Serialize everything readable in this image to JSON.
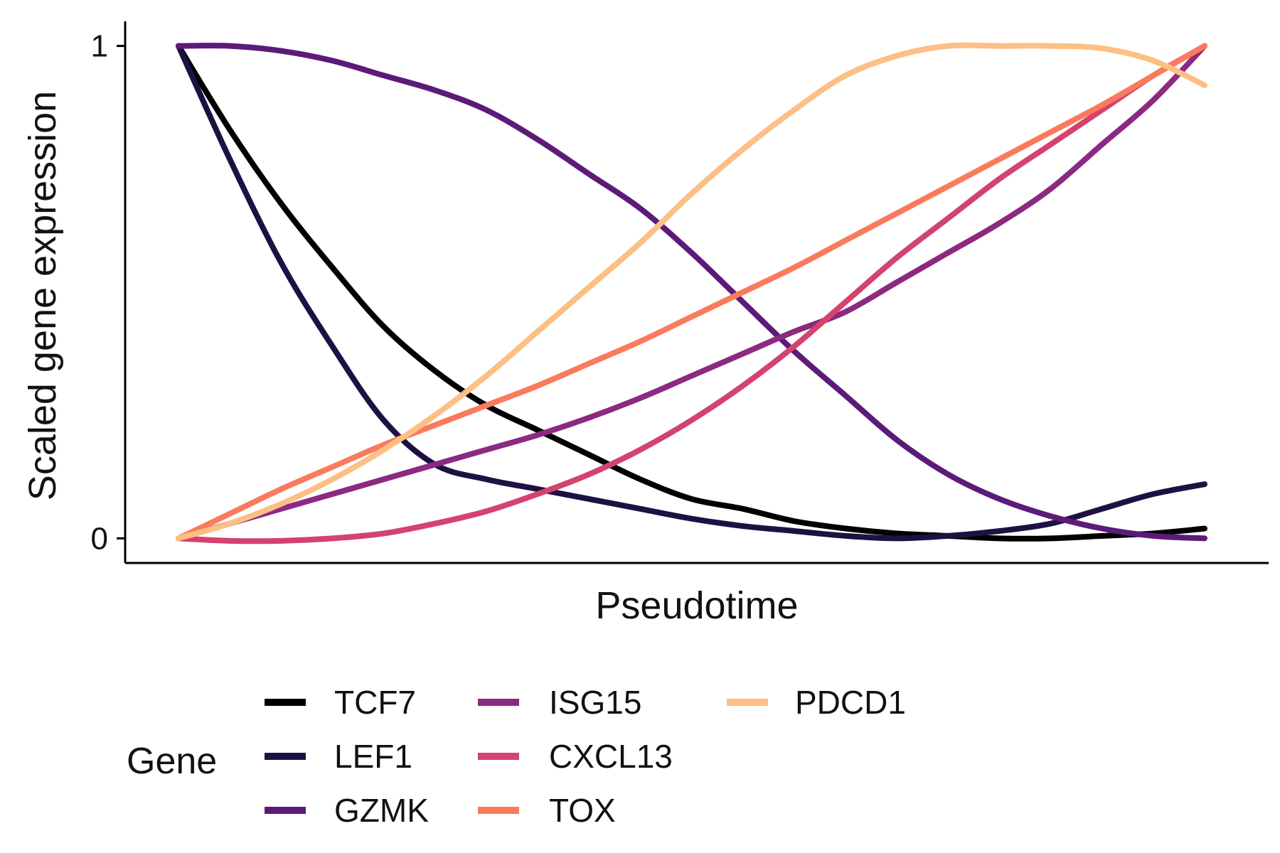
{
  "chart_data": {
    "type": "line",
    "xlabel": "Pseudotime",
    "ylabel": "Scaled gene expression",
    "xlim": [
      0,
      1
    ],
    "ylim": [
      -0.05,
      1.05
    ],
    "y_ticks": [
      0,
      1
    ],
    "y_tick_labels": [
      "0",
      "1"
    ],
    "x_ticks": [],
    "grid": false,
    "legend": {
      "title": "Gene",
      "position": "bottom"
    },
    "series": [
      {
        "name": "TCF7",
        "color": "#000000",
        "x": [
          0,
          0.05,
          0.1,
          0.15,
          0.2,
          0.25,
          0.3,
          0.35,
          0.4,
          0.45,
          0.5,
          0.55,
          0.6,
          0.65,
          0.7,
          0.75,
          0.8,
          0.85,
          0.9,
          0.95,
          1.0
        ],
        "y": [
          1.0,
          0.83,
          0.68,
          0.55,
          0.43,
          0.34,
          0.27,
          0.22,
          0.17,
          0.12,
          0.08,
          0.06,
          0.035,
          0.02,
          0.01,
          0.005,
          0.0,
          0.0,
          0.005,
          0.01,
          0.02
        ]
      },
      {
        "name": "LEF1",
        "color": "#1f1044",
        "x": [
          0,
          0.05,
          0.1,
          0.15,
          0.2,
          0.25,
          0.3,
          0.35,
          0.4,
          0.45,
          0.5,
          0.55,
          0.6,
          0.65,
          0.7,
          0.75,
          0.8,
          0.85,
          0.9,
          0.95,
          1.0
        ],
        "y": [
          1.0,
          0.77,
          0.56,
          0.39,
          0.24,
          0.15,
          0.12,
          0.1,
          0.08,
          0.06,
          0.04,
          0.025,
          0.015,
          0.005,
          0.0,
          0.005,
          0.015,
          0.03,
          0.06,
          0.09,
          0.11
        ]
      },
      {
        "name": "GZMK",
        "color": "#5c1a79",
        "x": [
          0,
          0.05,
          0.1,
          0.15,
          0.2,
          0.25,
          0.3,
          0.35,
          0.4,
          0.45,
          0.5,
          0.55,
          0.6,
          0.65,
          0.7,
          0.75,
          0.8,
          0.85,
          0.9,
          0.95,
          1.0
        ],
        "y": [
          1.0,
          1.0,
          0.99,
          0.97,
          0.94,
          0.91,
          0.87,
          0.81,
          0.74,
          0.67,
          0.58,
          0.48,
          0.38,
          0.29,
          0.2,
          0.13,
          0.08,
          0.045,
          0.02,
          0.005,
          0.0
        ]
      },
      {
        "name": "ISG15",
        "color": "#8c2981",
        "x": [
          0,
          0.05,
          0.1,
          0.15,
          0.2,
          0.25,
          0.3,
          0.35,
          0.4,
          0.45,
          0.5,
          0.55,
          0.6,
          0.65,
          0.7,
          0.75,
          0.8,
          0.85,
          0.9,
          0.95,
          1.0
        ],
        "y": [
          0.0,
          0.03,
          0.06,
          0.09,
          0.12,
          0.15,
          0.18,
          0.21,
          0.245,
          0.285,
          0.33,
          0.375,
          0.42,
          0.46,
          0.52,
          0.58,
          0.64,
          0.71,
          0.8,
          0.89,
          1.0
        ]
      },
      {
        "name": "CXCL13",
        "color": "#d3436e",
        "x": [
          0,
          0.05,
          0.1,
          0.15,
          0.2,
          0.25,
          0.3,
          0.35,
          0.4,
          0.45,
          0.5,
          0.55,
          0.6,
          0.65,
          0.7,
          0.75,
          0.8,
          0.85,
          0.9,
          0.95,
          1.0
        ],
        "y": [
          0.0,
          -0.005,
          -0.005,
          0.0,
          0.01,
          0.03,
          0.055,
          0.09,
          0.13,
          0.18,
          0.24,
          0.31,
          0.39,
          0.48,
          0.57,
          0.65,
          0.73,
          0.8,
          0.87,
          0.94,
          1.0
        ]
      },
      {
        "name": "TOX",
        "color": "#fa7b5c",
        "x": [
          0,
          0.05,
          0.1,
          0.15,
          0.2,
          0.25,
          0.3,
          0.35,
          0.4,
          0.45,
          0.5,
          0.55,
          0.6,
          0.65,
          0.7,
          0.75,
          0.8,
          0.85,
          0.9,
          0.95,
          1.0
        ],
        "y": [
          0.0,
          0.05,
          0.1,
          0.145,
          0.19,
          0.23,
          0.27,
          0.31,
          0.355,
          0.4,
          0.45,
          0.5,
          0.55,
          0.605,
          0.66,
          0.715,
          0.77,
          0.825,
          0.88,
          0.94,
          1.0
        ]
      },
      {
        "name": "PDCD1",
        "color": "#fdbf85",
        "x": [
          0,
          0.05,
          0.1,
          0.15,
          0.2,
          0.25,
          0.3,
          0.35,
          0.4,
          0.45,
          0.5,
          0.55,
          0.6,
          0.65,
          0.7,
          0.75,
          0.8,
          0.85,
          0.9,
          0.95,
          1.0
        ],
        "y": [
          0.0,
          0.03,
          0.07,
          0.12,
          0.18,
          0.25,
          0.33,
          0.42,
          0.51,
          0.6,
          0.7,
          0.79,
          0.87,
          0.94,
          0.98,
          1.0,
          1.0,
          1.0,
          0.995,
          0.97,
          0.92
        ]
      }
    ]
  }
}
